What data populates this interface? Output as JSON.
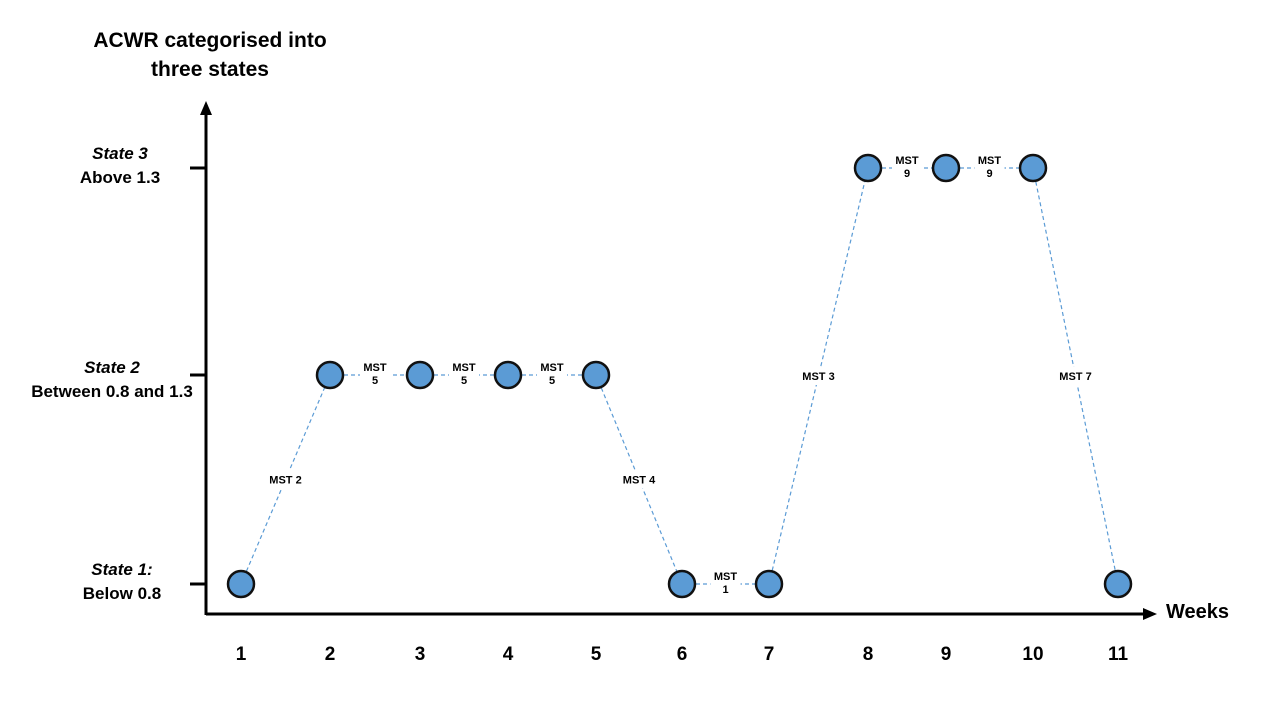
{
  "y_axis_title": [
    "ACWR categorised into",
    "three states"
  ],
  "x_axis_title": "Weeks",
  "states": [
    {
      "level": 1,
      "name": "State 1:",
      "range": "Below 0.8"
    },
    {
      "level": 2,
      "name": "State 2",
      "range": "Between 0.8 and 1.3"
    },
    {
      "level": 3,
      "name": "State 3",
      "range": "Above 1.3"
    }
  ],
  "colors": {
    "node_fill": "#5b9bd5",
    "node_stroke": "#111111",
    "link": "#5b9bd5",
    "axis": "#000000"
  },
  "chart_data": {
    "type": "scatter",
    "x_ticks": [
      "1",
      "2",
      "3",
      "4",
      "5",
      "6",
      "7",
      "8",
      "9",
      "10",
      "11"
    ],
    "points": [
      {
        "week": 1,
        "state": 1
      },
      {
        "week": 2,
        "state": 2
      },
      {
        "week": 3,
        "state": 2
      },
      {
        "week": 4,
        "state": 2
      },
      {
        "week": 5,
        "state": 2
      },
      {
        "week": 6,
        "state": 1
      },
      {
        "week": 7,
        "state": 1
      },
      {
        "week": 8,
        "state": 3
      },
      {
        "week": 9,
        "state": 3
      },
      {
        "week": 10,
        "state": 3
      },
      {
        "week": 11,
        "state": 1
      }
    ],
    "transitions": [
      {
        "from": 1,
        "to": 2,
        "label": [
          "MST 2"
        ]
      },
      {
        "from": 2,
        "to": 3,
        "label": [
          "MST",
          "5"
        ]
      },
      {
        "from": 3,
        "to": 4,
        "label": [
          "MST",
          "5"
        ]
      },
      {
        "from": 4,
        "to": 5,
        "label": [
          "MST",
          "5"
        ]
      },
      {
        "from": 5,
        "to": 6,
        "label": [
          "MST 4"
        ]
      },
      {
        "from": 6,
        "to": 7,
        "label": [
          "MST",
          "1"
        ]
      },
      {
        "from": 7,
        "to": 8,
        "label": [
          "MST 3"
        ]
      },
      {
        "from": 8,
        "to": 9,
        "label": [
          "MST",
          "9"
        ]
      },
      {
        "from": 9,
        "to": 10,
        "label": [
          "MST",
          "9"
        ]
      },
      {
        "from": 10,
        "to": 11,
        "label": [
          "MST 7"
        ]
      }
    ]
  }
}
